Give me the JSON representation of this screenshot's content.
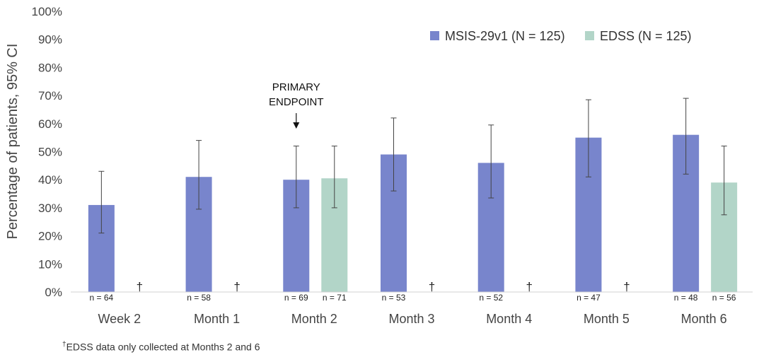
{
  "chart_data": {
    "type": "bar",
    "ylabel": "Percentage of patients, 95% CI",
    "ylim": [
      0,
      100
    ],
    "yticks": [
      "0%",
      "10%",
      "20%",
      "30%",
      "40%",
      "50%",
      "60%",
      "70%",
      "80%",
      "90%",
      "100%"
    ],
    "categories": [
      "Week 2",
      "Month 1",
      "Month 2",
      "Month 3",
      "Month 4",
      "Month 5",
      "Month 6"
    ],
    "series": [
      {
        "name": "MSIS-29v1 (N = 125)",
        "color": "#7885cc",
        "values": [
          31,
          41,
          40,
          49,
          46,
          55,
          56
        ],
        "ci_low": [
          21,
          29.5,
          30,
          36,
          33.5,
          41,
          42
        ],
        "ci_high": [
          43,
          54,
          52,
          62,
          59.5,
          68.5,
          69
        ],
        "n_labels": [
          "n = 64",
          "n = 58",
          "n = 69",
          "n = 53",
          "n = 52",
          "n = 47",
          "n = 48"
        ]
      },
      {
        "name": "EDSS (N = 125)",
        "color": "#b2d5c8",
        "values": [
          null,
          null,
          40.5,
          null,
          null,
          null,
          39
        ],
        "ci_low": [
          null,
          null,
          30,
          null,
          null,
          null,
          27.5
        ],
        "ci_high": [
          null,
          null,
          52,
          null,
          null,
          null,
          52
        ],
        "n_labels": [
          "†",
          "†",
          "n = 71",
          "†",
          "†",
          "†",
          "n = 56"
        ]
      }
    ],
    "annotation": {
      "lines": [
        "PRIMARY",
        "ENDPOINT"
      ],
      "category": "Month 2"
    },
    "legend_position": "top-right"
  },
  "footnote": {
    "marker": "†",
    "text": "EDSS data only collected at Months 2 and 6"
  }
}
